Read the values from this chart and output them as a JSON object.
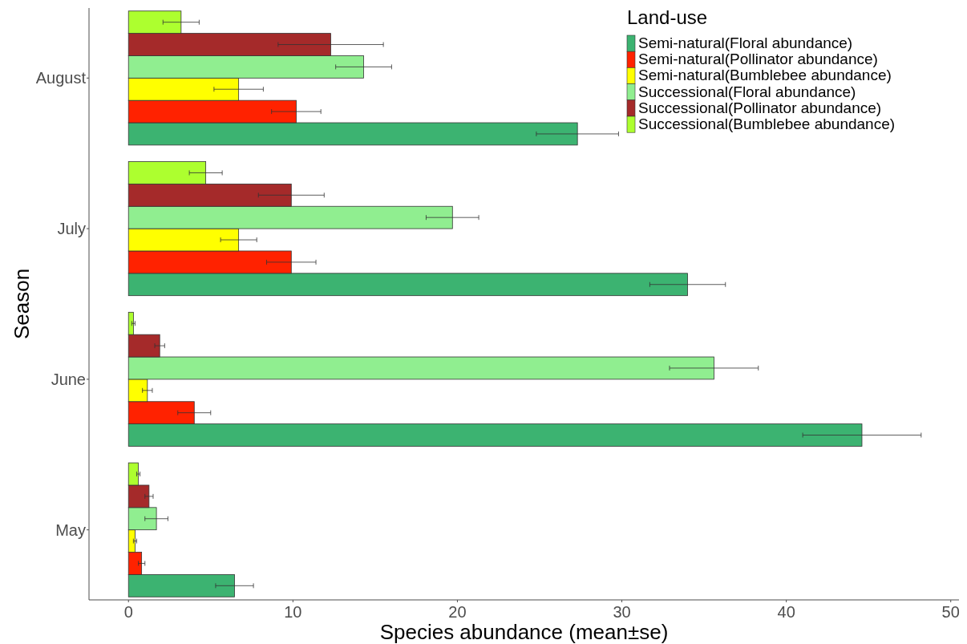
{
  "chart_data": {
    "type": "bar",
    "orientation": "horizontal",
    "xlabel": "Species abundance (mean±se)",
    "ylabel": "Season",
    "legend_title": "Land-use",
    "legend": "top right",
    "grid": false,
    "categories": [
      "August",
      "July",
      "June",
      "May"
    ],
    "xlim": [
      -2.4,
      50.5
    ],
    "xticks": [
      0,
      10,
      20,
      30,
      40,
      50
    ],
    "series": [
      {
        "name": "Semi-natural(Floral abundance)",
        "color": "#3cb371",
        "values": [
          27.3,
          34.0,
          44.6,
          6.45
        ],
        "errors": [
          2.5,
          2.3,
          3.6,
          1.15
        ]
      },
      {
        "name": "Semi-natural(Pollinator abundance)",
        "color": "#ff2200",
        "values": [
          10.2,
          9.9,
          4.0,
          0.8
        ],
        "errors": [
          1.5,
          1.5,
          1.0,
          0.2
        ]
      },
      {
        "name": "Semi-natural(Bumblebee abundance)",
        "color": "#ffff00",
        "values": [
          6.7,
          6.7,
          1.15,
          0.4
        ],
        "errors": [
          1.5,
          1.1,
          0.3,
          0.1
        ]
      },
      {
        "name": "Successional(Floral abundance)",
        "color": "#90ee90",
        "values": [
          14.3,
          19.7,
          35.6,
          1.7
        ],
        "errors": [
          1.7,
          1.6,
          2.7,
          0.7
        ]
      },
      {
        "name": "Successional(Pollinator abundance)",
        "color": "#a52a2a",
        "values": [
          12.3,
          9.9,
          1.9,
          1.25
        ],
        "errors": [
          3.2,
          2.0,
          0.3,
          0.25
        ]
      },
      {
        "name": "Successional(Bumblebee abundance)",
        "color": "#adff2f",
        "values": [
          3.2,
          4.7,
          0.3,
          0.6
        ],
        "errors": [
          1.1,
          1.0,
          0.1,
          0.1
        ]
      }
    ]
  }
}
